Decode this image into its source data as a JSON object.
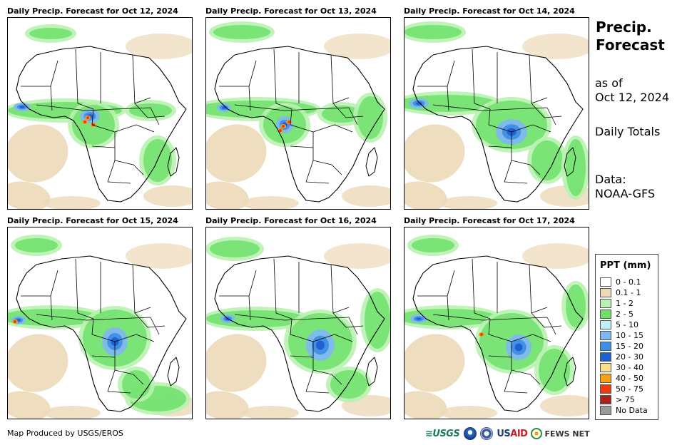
{
  "panels": [
    {
      "title": "Daily Precip. Forecast for Oct 12, 2024"
    },
    {
      "title": "Daily Precip. Forecast for Oct 13, 2024"
    },
    {
      "title": "Daily Precip. Forecast for Oct 14, 2024"
    },
    {
      "title": "Daily Precip. Forecast for Oct 15, 2024"
    },
    {
      "title": "Daily Precip. Forecast for Oct 16, 2024"
    },
    {
      "title": "Daily Precip. Forecast for Oct 17, 2024"
    }
  ],
  "side": {
    "title": "Precip.\nForecast",
    "as_of": "as of\nOct 12, 2024",
    "totals": "Daily Totals",
    "data_source": "Data:\nNOAA-GFS"
  },
  "legend": {
    "title": "PPT (mm)",
    "items": [
      {
        "label": "0 - 0.1",
        "color": "#ffffff"
      },
      {
        "label": "0.1 - 1",
        "color": "#ecd9b8"
      },
      {
        "label": "1 - 2",
        "color": "#b8f2b0"
      },
      {
        "label": "2 - 5",
        "color": "#6fe06a"
      },
      {
        "label": "5 - 10",
        "color": "#bff0f5"
      },
      {
        "label": "10 - 15",
        "color": "#7fb8ee"
      },
      {
        "label": "15 - 20",
        "color": "#3f8ee6"
      },
      {
        "label": "20 - 30",
        "color": "#1c5fd0"
      },
      {
        "label": "30 - 40",
        "color": "#f8e18a"
      },
      {
        "label": "40 - 50",
        "color": "#f5a21a"
      },
      {
        "label": "50 - 75",
        "color": "#ee3a0c"
      },
      {
        "label": "> 75",
        "color": "#a8221e"
      },
      {
        "label": "No Data",
        "color": "#9a9a9a"
      }
    ]
  },
  "footer": {
    "credit": "Map Produced by USGS/EROS",
    "logos": {
      "usgs": "≋USGS",
      "usaid_prefix": "US",
      "usaid_suffix": "AID",
      "fews": "FEWS NET"
    }
  }
}
